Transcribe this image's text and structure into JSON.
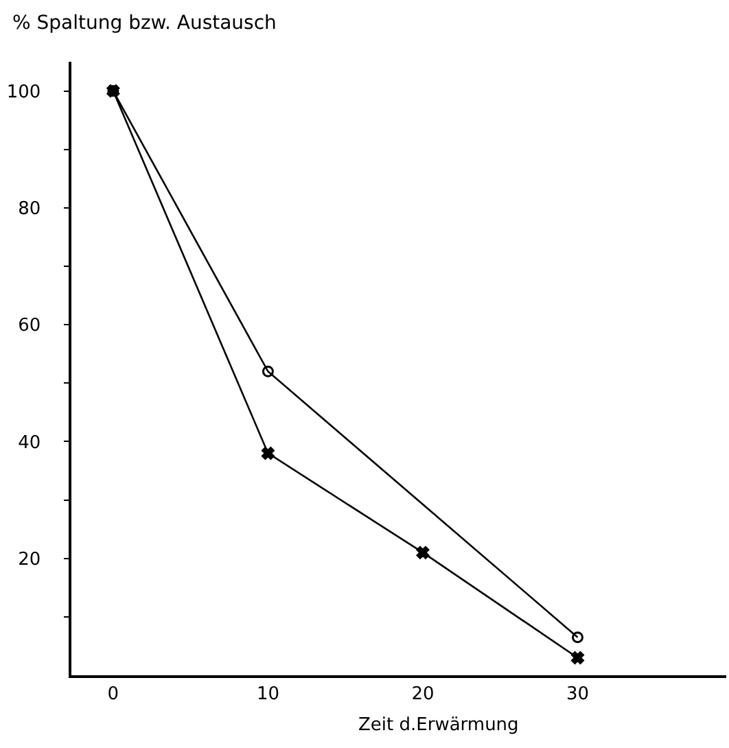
{
  "chart_data": {
    "type": "line",
    "ylabel": "% Spaltung bzw. Austausch",
    "xlabel": "Zeit d.Erwärmung",
    "series": [
      {
        "color": "#000000",
        "marker": "cross",
        "x": [
          0,
          10,
          20,
          30
        ],
        "values": [
          100,
          38,
          21,
          3
        ]
      },
      {
        "color": "#000000",
        "marker": "circle",
        "x": [
          0,
          10,
          30
        ],
        "values": [
          100,
          52,
          6.5
        ]
      }
    ],
    "xlim": [
      -2.7,
      39.6
    ],
    "xticks": [
      0,
      10,
      20,
      30
    ],
    "ylim": [
      0,
      105
    ],
    "yticks": [
      {
        "value": 10,
        "label": null
      },
      20,
      {
        "value": 30,
        "label": null
      },
      40,
      {
        "value": 50,
        "label": null
      },
      60,
      {
        "value": 70,
        "label": null
      },
      80,
      {
        "value": 90,
        "label": null
      },
      100
    ],
    "line_style": "solid"
  }
}
